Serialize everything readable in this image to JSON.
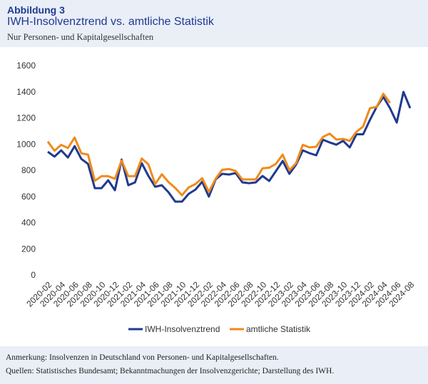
{
  "header": {
    "label": "Abbildung 3",
    "title": "IWH-Insolvenztrend vs. amtliche Statistik",
    "subtitle": "Nur Personen- und Kapitalgesellschaften"
  },
  "chart_data": {
    "type": "line",
    "categories": [
      "2020-02",
      null,
      "2020-04",
      null,
      "2020-06",
      null,
      "2020-08",
      null,
      "2020-10",
      null,
      "2020-12",
      null,
      "2021-02",
      null,
      "2021-04",
      null,
      "2021-06",
      null,
      "2021-08",
      null,
      "2021-10",
      null,
      "2021-12",
      null,
      "2022-02",
      null,
      "2022-04",
      null,
      "2022-06",
      null,
      "2022-08",
      null,
      "2022-10",
      null,
      "2022-12",
      null,
      "2023-02",
      null,
      "2023-04",
      null,
      "2023-06",
      null,
      "2023-08",
      null,
      "2023-10",
      null,
      "2023-12",
      null,
      "2024-02",
      null,
      "2024-04",
      null,
      "2024-06",
      null,
      "2024-08"
    ],
    "series": [
      {
        "name": "IWH-Insolvenztrend",
        "color": "#1f3a8f",
        "values": [
          947,
          910,
          958,
          903,
          990,
          892,
          854,
          669,
          669,
          729,
          653,
          887,
          691,
          713,
          860,
          762,
          680,
          691,
          637,
          566,
          566,
          626,
          658,
          718,
          604,
          735,
          778,
          773,
          784,
          713,
          707,
          713,
          762,
          724,
          800,
          876,
          778,
          849,
          958,
          936,
          920,
          1039,
          1018,
          1001,
          1030,
          980,
          1080,
          1080,
          1190,
          1290,
          1366,
          1279,
          1170,
          1404,
          1280
        ]
      },
      {
        "name": "amtliche Statistik",
        "color": "#f08a1c",
        "values": [
          1025,
          955,
          1000,
          975,
          1055,
          935,
          925,
          725,
          760,
          760,
          740,
          880,
          760,
          760,
          895,
          850,
          700,
          775,
          715,
          670,
          615,
          675,
          700,
          745,
          640,
          740,
          810,
          815,
          800,
          735,
          735,
          735,
          820,
          825,
          855,
          925,
          805,
          860,
          1000,
          980,
          985,
          1060,
          1085,
          1040,
          1045,
          1030,
          1100,
          1140,
          1280,
          1290,
          1390,
          1320,
          null,
          null,
          null
        ]
      }
    ],
    "ylim": [
      0,
      1600
    ],
    "yticks": [
      0,
      200,
      400,
      600,
      800,
      1000,
      1200,
      1400,
      1600
    ],
    "grid": false,
    "legend": "bottom"
  },
  "footer": {
    "note": "Anmerkung: Insolvenzen in Deutschland von Personen- und Kapitalgesellschaften.",
    "source": "Quellen: Statistisches Bundesamt; Bekanntmachungen der Insolvenzgerichte; Darstellung des IWH."
  }
}
